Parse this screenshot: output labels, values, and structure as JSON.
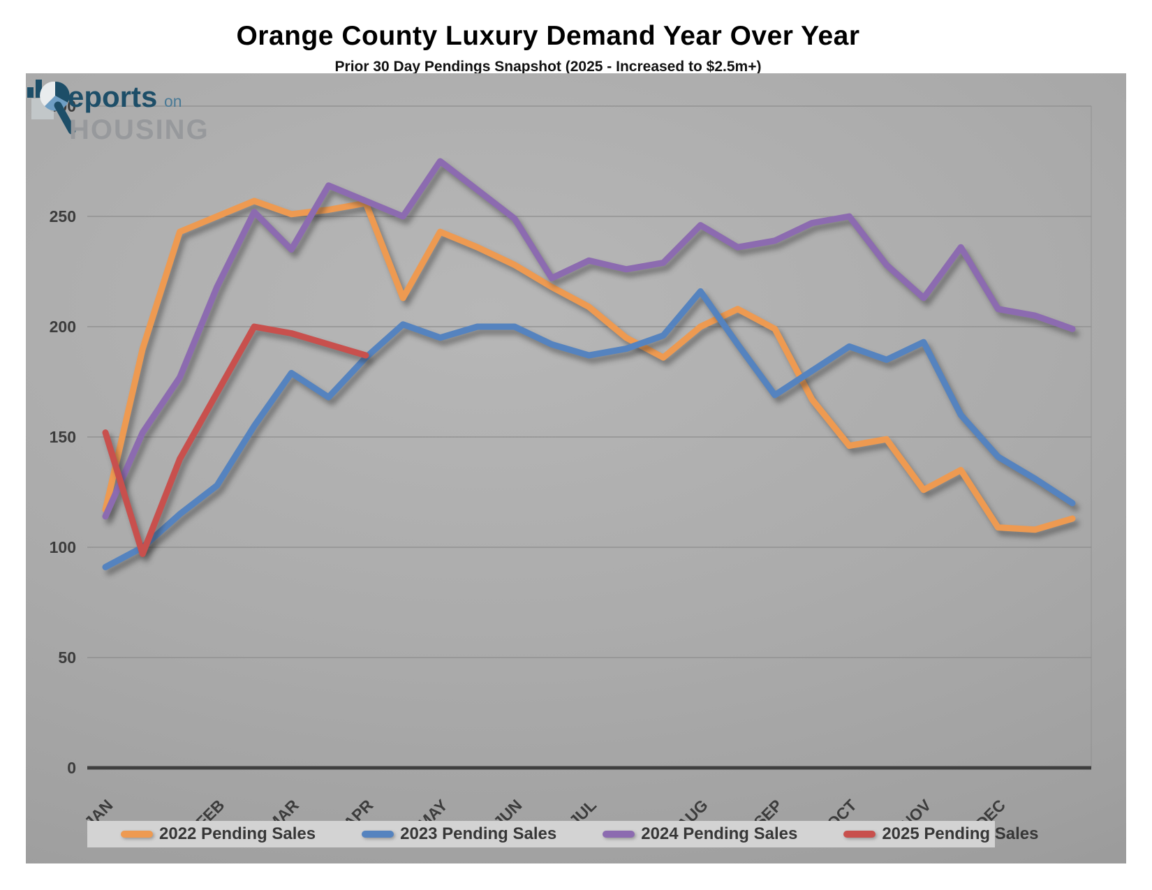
{
  "page": {
    "title": "Orange County Luxury Demand Year Over Year",
    "subtitle": "Prior 30 Day Pendings Snapshot (2025 - Increased to $2.5m+)"
  },
  "chart_data": {
    "type": "line",
    "title": "Orange County Luxury Demand Year Over Year",
    "subtitle": "Prior 30 Day Pendings Snapshot (2025 - Increased to $2.5m+)",
    "grid": true,
    "legend_position": "bottom",
    "x_axis": {
      "labels": [
        "JAN",
        "FEB",
        "MAR",
        "APR",
        "MAY",
        "JUN",
        "JUL",
        "AUG",
        "SEP",
        "OCT",
        "NOV",
        "DEC"
      ],
      "label_slots": [
        0,
        3,
        5,
        7,
        9,
        11,
        13,
        16,
        18,
        20,
        22,
        24
      ],
      "total_slots": 27
    },
    "y_axis": {
      "min": 0,
      "max": 300,
      "step": 50,
      "ticks": [
        0,
        50,
        100,
        150,
        200,
        250,
        300
      ]
    },
    "series": [
      {
        "name": "2022 Pending Sales",
        "color": "#EE9A51",
        "values": [
          117,
          190,
          243,
          250,
          257,
          251,
          253,
          256,
          213,
          243,
          236,
          228,
          218,
          209,
          195,
          186,
          200,
          208,
          199,
          167,
          146,
          149,
          126,
          135,
          109,
          108,
          113
        ]
      },
      {
        "name": "2023 Pending Sales",
        "color": "#5583BF",
        "values": [
          91,
          100,
          115,
          128,
          155,
          179,
          168,
          186,
          201,
          195,
          200,
          200,
          192,
          187,
          190,
          196,
          216,
          192,
          169,
          180,
          191,
          185,
          193,
          160,
          141,
          131,
          120
        ]
      },
      {
        "name": "2024 Pending Sales",
        "color": "#8C6BB0",
        "values": [
          114,
          152,
          177,
          218,
          252,
          235,
          264,
          257,
          250,
          275,
          262,
          249,
          222,
          230,
          226,
          229,
          246,
          236,
          239,
          247,
          250,
          228,
          213,
          236,
          208,
          205,
          199
        ]
      },
      {
        "name": "2025 Pending Sales",
        "color": "#C8504D",
        "values": [
          152,
          97,
          140,
          170,
          200,
          197,
          192,
          187
        ]
      }
    ],
    "colors": {
      "gridline": "#8e8e8e",
      "axis_line": "#3f3f3f",
      "tick_text": "#3c3c3c"
    }
  },
  "logo": {
    "brand_main": "eports",
    "brand_conj": "on",
    "brand_secondary": "HOUSING",
    "navy": "#1D4E68",
    "light_navy": "#4A7A96",
    "gray": "#97999C",
    "pie_blue": "#6E9EC4",
    "pie_pale": "#E9ECEE"
  }
}
